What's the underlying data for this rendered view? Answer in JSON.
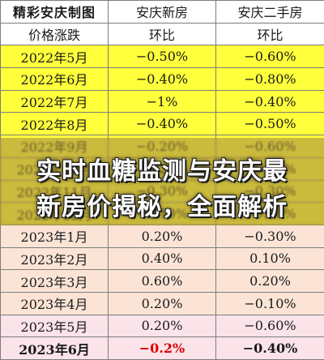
{
  "header": {
    "brand": "精彩安庆制图",
    "col_new": "安庆新房",
    "col_second": "安庆二手房",
    "row_label": "价格涨跌",
    "metric_new": "环比",
    "metric_second": "环比"
  },
  "rows": [
    {
      "month": "2022年5月",
      "new": "−0.50%",
      "second": "−0.60%",
      "tone": "yellow"
    },
    {
      "month": "2022年6月",
      "new": "−0.40%",
      "second": "−0.80%",
      "tone": "yellow"
    },
    {
      "month": "2022年7月",
      "new": "−1%",
      "second": "−0.40%",
      "tone": "yellow"
    },
    {
      "month": "2022年8月",
      "new": "−0.40%",
      "second": "−0.50%",
      "tone": "yellow"
    },
    {
      "month": "2022年9月",
      "new": "−0.20%",
      "second": "−0.60%",
      "tone": "yellow"
    },
    {
      "month": "2022年10月",
      "new": "−0.20%",
      "second": "−0.40%",
      "tone": "yellow"
    },
    {
      "month": "2022年11月",
      "new": "−0.30%",
      "second": "−0.30%",
      "tone": "yellow"
    },
    {
      "month": "2022年12月",
      "new": "−0.10%",
      "second": "−0.20%",
      "tone": "yellow"
    },
    {
      "month": "2023年1月",
      "new": "0.20%",
      "second": "−0.30%",
      "tone": "peach"
    },
    {
      "month": "2023年2月",
      "new": "0.40%",
      "second": "0.10%",
      "tone": "peach"
    },
    {
      "month": "2023年3月",
      "new": "0.60%",
      "second": "0.20%",
      "tone": "peach"
    },
    {
      "month": "2023年4月",
      "new": "0.20%",
      "second": "−0.10%",
      "tone": "peach"
    },
    {
      "month": "2023年5月",
      "new": "0.20%",
      "second": "−0.60%",
      "tone": "pink"
    },
    {
      "month": "2023年6月",
      "new": "−0.2%",
      "second": "−0.40%",
      "tone": "pink",
      "highlight_new": true
    }
  ],
  "colors": {
    "yellow": "#ffff3c",
    "peach": "#fbe4d6",
    "pink": "#fae3e9",
    "brand_red": "#c0392b",
    "highlight_red": "#e00000"
  },
  "banner": {
    "line1": "实时血糖监测与安庆最",
    "line2": "新房价揭秘，全面解析"
  }
}
